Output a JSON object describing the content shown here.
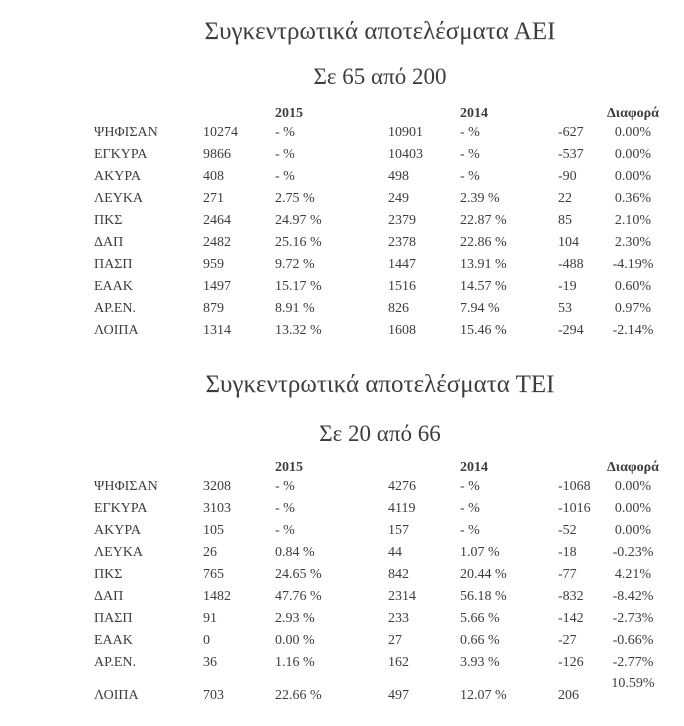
{
  "colors": {
    "text": "#3d3d3d",
    "background": "#ffffff"
  },
  "sections": [
    {
      "title": "Συγκεντρωτικά αποτελέσματα ΑΕΙ",
      "subtitle": "Σε 65 από 200",
      "table": {
        "headers": {
          "y2015": "2015",
          "y2014": "2014",
          "diff": "Διαφορά"
        },
        "rows": [
          {
            "label": "ΨΗΦΙΣΑΝ",
            "v2015": "10274",
            "p2015": "- %",
            "v2014": "10901",
            "p2014": "- %",
            "diff": "-627",
            "pct": "0.00%"
          },
          {
            "label": "ΕΓΚΥΡΑ",
            "v2015": "9866",
            "p2015": "- %",
            "v2014": "10403",
            "p2014": "- %",
            "diff": "-537",
            "pct": "0.00%"
          },
          {
            "label": "ΑΚΥΡΑ",
            "v2015": "408",
            "p2015": "- %",
            "v2014": "498",
            "p2014": "- %",
            "diff": "-90",
            "pct": "0.00%"
          },
          {
            "label": "ΛΕΥΚΑ",
            "v2015": "271",
            "p2015": "2.75 %",
            "v2014": "249",
            "p2014": "2.39 %",
            "diff": "22",
            "pct": "0.36%"
          },
          {
            "label": "ΠΚΣ",
            "v2015": "2464",
            "p2015": "24.97 %",
            "v2014": "2379",
            "p2014": "22.87 %",
            "diff": "85",
            "pct": "2.10%"
          },
          {
            "label": "ΔΑΠ",
            "v2015": "2482",
            "p2015": "25.16 %",
            "v2014": "2378",
            "p2014": "22.86 %",
            "diff": "104",
            "pct": "2.30%"
          },
          {
            "label": "ΠΑΣΠ",
            "v2015": "959",
            "p2015": "9.72 %",
            "v2014": "1447",
            "p2014": "13.91 %",
            "diff": "-488",
            "pct": "-4.19%"
          },
          {
            "label": "ΕΑΑΚ",
            "v2015": "1497",
            "p2015": "15.17 %",
            "v2014": "1516",
            "p2014": "14.57 %",
            "diff": "-19",
            "pct": "0.60%"
          },
          {
            "label": "ΑΡ.ΕΝ.",
            "v2015": "879",
            "p2015": "8.91 %",
            "v2014": "826",
            "p2014": "7.94 %",
            "diff": "53",
            "pct": "0.97%"
          },
          {
            "label": "ΛΟΙΠΑ",
            "v2015": "1314",
            "p2015": "13.32 %",
            "v2014": "1608",
            "p2014": "15.46 %",
            "diff": "-294",
            "pct": "-2.14%"
          }
        ]
      }
    },
    {
      "title": "Συγκεντρωτικά αποτελέσματα ΤΕΙ",
      "subtitle": "Σε 20 από 66",
      "table": {
        "headers": {
          "y2015": "2015",
          "y2014": "2014",
          "diff": "Διαφορά"
        },
        "rows": [
          {
            "label": "ΨΗΦΙΣΑΝ",
            "v2015": "3208",
            "p2015": "- %",
            "v2014": "4276",
            "p2014": "- %",
            "diff": "-1068",
            "pct": "0.00%"
          },
          {
            "label": "ΕΓΚΥΡΑ",
            "v2015": "3103",
            "p2015": "- %",
            "v2014": "4119",
            "p2014": "- %",
            "diff": "-1016",
            "pct": "0.00%"
          },
          {
            "label": "ΑΚΥΡΑ",
            "v2015": "105",
            "p2015": "- %",
            "v2014": "157",
            "p2014": "- %",
            "diff": "-52",
            "pct": "0.00%"
          },
          {
            "label": "ΛΕΥΚΑ",
            "v2015": "26",
            "p2015": "0.84 %",
            "v2014": "44",
            "p2014": "1.07 %",
            "diff": "-18",
            "pct": "-0.23%"
          },
          {
            "label": "ΠΚΣ",
            "v2015": "765",
            "p2015": "24.65 %",
            "v2014": "842",
            "p2014": "20.44 %",
            "diff": "-77",
            "pct": "4.21%"
          },
          {
            "label": "ΔΑΠ",
            "v2015": "1482",
            "p2015": "47.76 %",
            "v2014": "2314",
            "p2014": "56.18 %",
            "diff": "-832",
            "pct": "-8.42%"
          },
          {
            "label": "ΠΑΣΠ",
            "v2015": "91",
            "p2015": "2.93 %",
            "v2014": "233",
            "p2014": "5.66 %",
            "diff": "-142",
            "pct": "-2.73%"
          },
          {
            "label": "ΕΑΑΚ",
            "v2015": "0",
            "p2015": "0.00 %",
            "v2014": "27",
            "p2014": "0.66 %",
            "diff": "-27",
            "pct": "-0.66%"
          },
          {
            "label": "ΑΡ.ΕΝ.",
            "v2015": "36",
            "p2015": "1.16 %",
            "v2014": "162",
            "p2014": "3.93 %",
            "diff": "-126",
            "pct": "-2.77%"
          },
          {
            "label": "ΛΟΙΠΑ",
            "v2015": "703",
            "p2015": "22.66 %",
            "v2014": "497",
            "p2014": "12.07 %",
            "diff": "206",
            "pct": "10.59%",
            "tall": true
          }
        ]
      }
    }
  ]
}
